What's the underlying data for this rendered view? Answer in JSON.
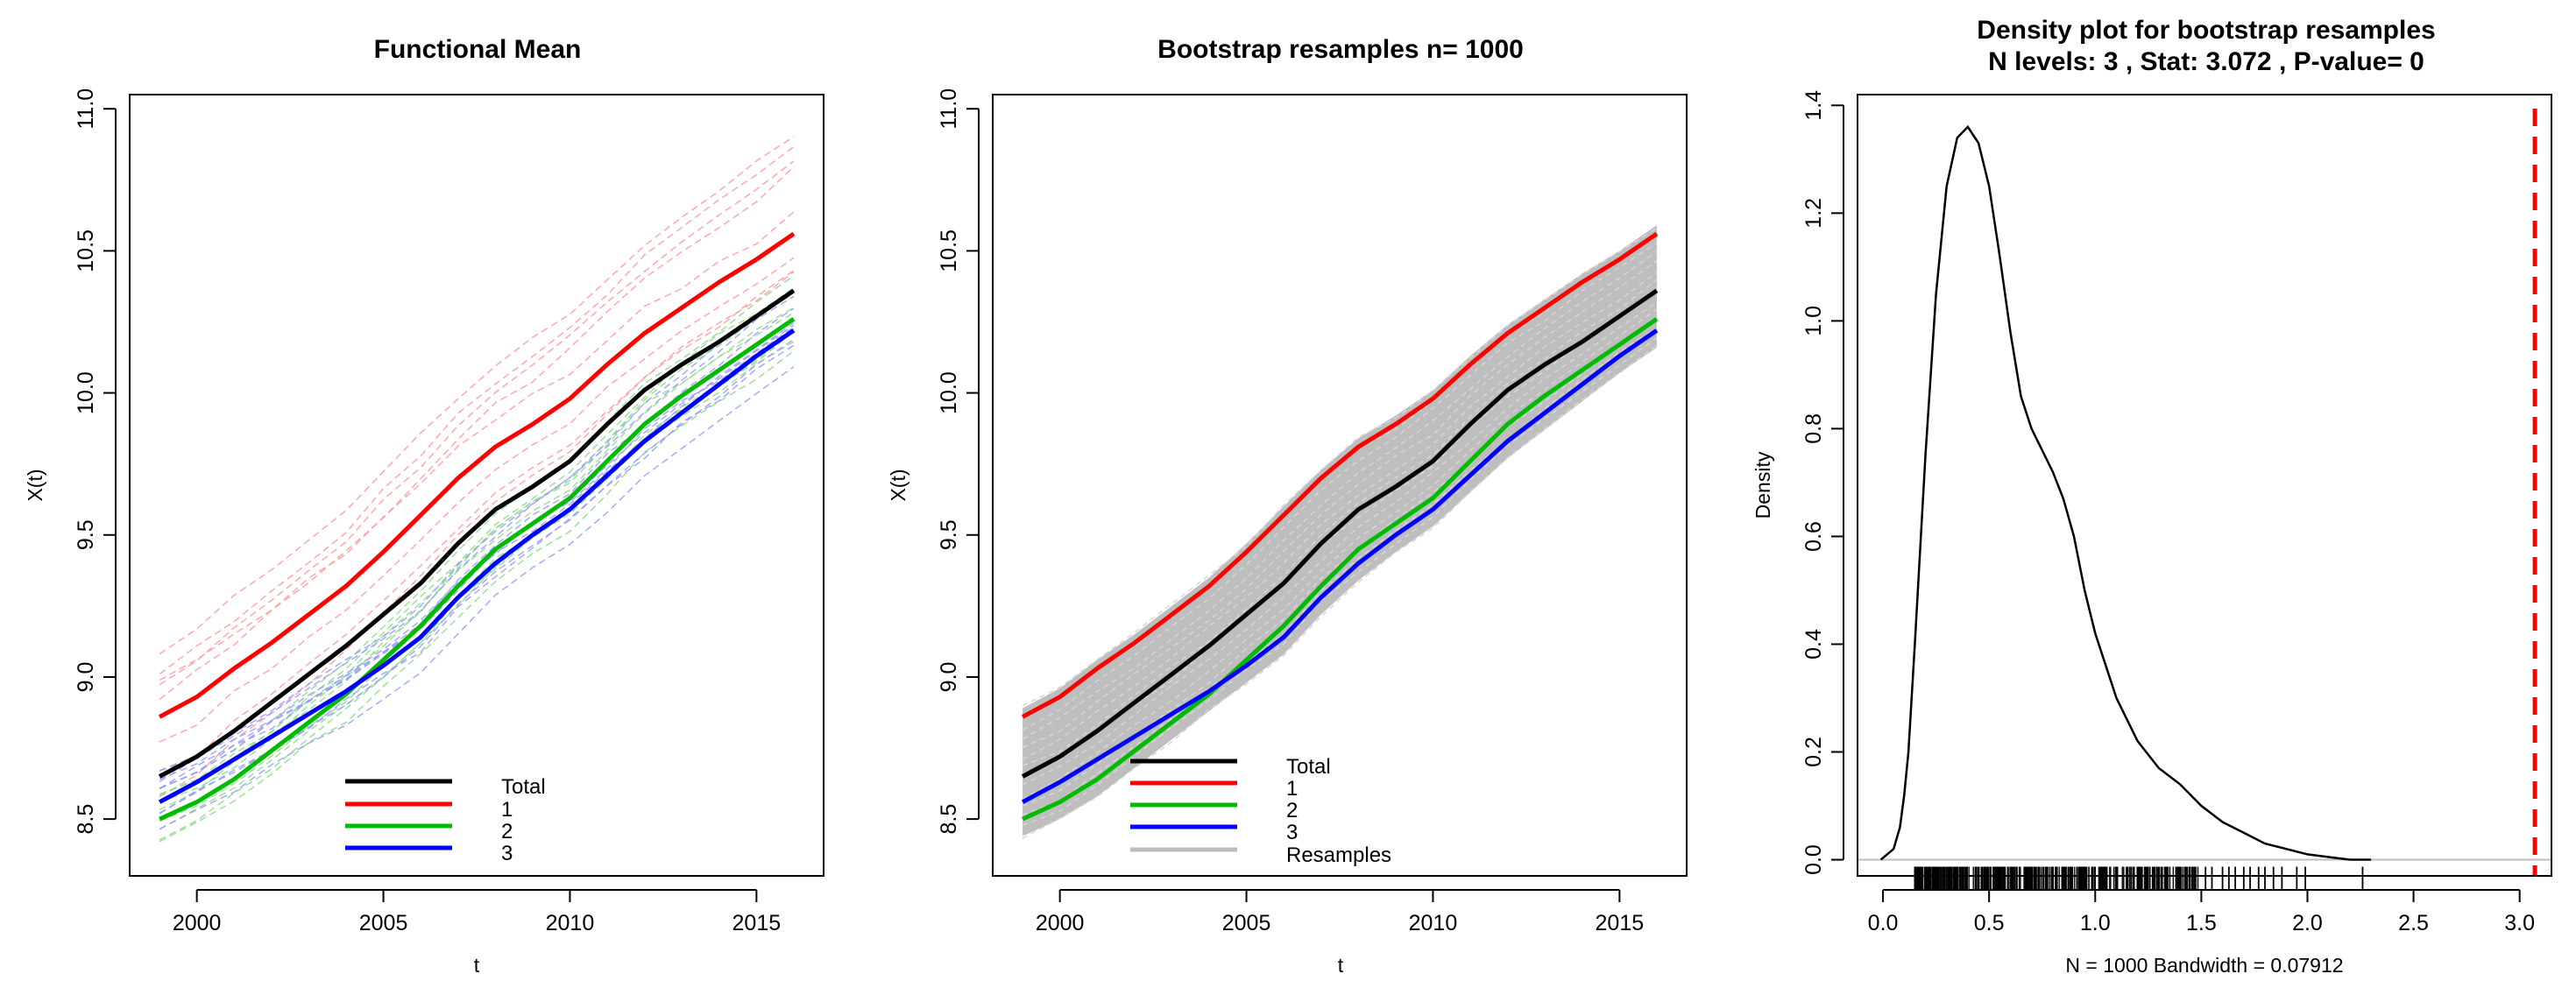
{
  "chart_data": [
    {
      "type": "line",
      "title": "Functional Mean",
      "xlabel": "t",
      "ylabel": "X(t)",
      "xlim": [
        1998.2,
        2016.8
      ],
      "ylim": [
        8.3,
        11.05
      ],
      "xticks": [
        "2000",
        "2005",
        "2010",
        "2015"
      ],
      "yticks": [
        "8.5",
        "9.0",
        "9.5",
        "10.0",
        "10.5",
        "11.0"
      ],
      "x": [
        1999,
        2000,
        2001,
        2002,
        2003,
        2004,
        2005,
        2006,
        2007,
        2008,
        2009,
        2010,
        2011,
        2012,
        2013,
        2014,
        2015,
        2016
      ],
      "series": [
        {
          "name": "Total",
          "color": "#000000",
          "values": [
            8.65,
            8.72,
            8.81,
            8.91,
            9.01,
            9.11,
            9.22,
            9.33,
            9.47,
            9.59,
            9.67,
            9.76,
            9.89,
            10.01,
            10.1,
            10.18,
            10.27,
            10.36
          ]
        },
        {
          "name": "1",
          "color": "#ff0000",
          "values": [
            8.86,
            8.93,
            9.03,
            9.12,
            9.22,
            9.32,
            9.44,
            9.57,
            9.7,
            9.81,
            9.89,
            9.98,
            10.1,
            10.21,
            10.3,
            10.39,
            10.47,
            10.56
          ]
        },
        {
          "name": "2",
          "color": "#00bb00",
          "values": [
            8.5,
            8.56,
            8.64,
            8.74,
            8.84,
            8.94,
            9.06,
            9.18,
            9.32,
            9.45,
            9.54,
            9.63,
            9.76,
            9.89,
            9.99,
            10.08,
            10.17,
            10.26
          ]
        },
        {
          "name": "3",
          "color": "#0000ff",
          "values": [
            8.56,
            8.63,
            8.71,
            8.79,
            8.87,
            8.95,
            9.04,
            9.14,
            9.28,
            9.4,
            9.5,
            9.59,
            9.71,
            9.83,
            9.93,
            10.03,
            10.13,
            10.22
          ]
        }
      ],
      "legend": {
        "position": "bottom-center",
        "entries": [
          "Total",
          "1",
          "2",
          "3"
        ]
      }
    },
    {
      "type": "line",
      "title": "Bootstrap resamples n= 1000",
      "xlabel": "t",
      "ylabel": "X(t)",
      "xlim": [
        1998.2,
        2016.8
      ],
      "ylim": [
        8.3,
        11.05
      ],
      "xticks": [
        "2000",
        "2005",
        "2010",
        "2015"
      ],
      "yticks": [
        "8.5",
        "9.0",
        "9.5",
        "10.0",
        "10.5",
        "11.0"
      ],
      "bootstrap_resamples": 1000,
      "resample_band": {
        "lower_offset_from_group3": -0.06,
        "upper_offset_from_group1": 0.03
      },
      "series_ref": [
        "Total",
        "1",
        "2",
        "3"
      ],
      "legend": {
        "position": "bottom-center",
        "entries": [
          "Total",
          "1",
          "2",
          "3",
          "Resamples"
        ],
        "resample_color": "#bebebe"
      }
    },
    {
      "type": "area",
      "title": "Density plot for bootstrap resamples",
      "subtitle": "N levels: 3 , Stat: 3.072 , P-value= 0",
      "xlabel": "N = 1000   Bandwidth = 0.07912",
      "ylabel": "Density",
      "xlim": [
        -0.12,
        3.15
      ],
      "ylim": [
        -0.03,
        1.42
      ],
      "xticks": [
        "0.0",
        "0.5",
        "1.0",
        "1.5",
        "2.0",
        "2.5",
        "3.0"
      ],
      "yticks": [
        "0.0",
        "0.2",
        "0.4",
        "0.6",
        "0.8",
        "1.0",
        "1.2",
        "1.4"
      ],
      "density_x": [
        -0.01,
        0.05,
        0.08,
        0.1,
        0.12,
        0.15,
        0.2,
        0.25,
        0.3,
        0.35,
        0.4,
        0.45,
        0.5,
        0.55,
        0.6,
        0.65,
        0.7,
        0.75,
        0.8,
        0.85,
        0.9,
        0.95,
        1.0,
        1.1,
        1.2,
        1.3,
        1.4,
        1.5,
        1.6,
        1.7,
        1.8,
        1.9,
        2.0,
        2.1,
        2.2,
        2.3
      ],
      "density_y": [
        0.0,
        0.02,
        0.06,
        0.12,
        0.2,
        0.4,
        0.75,
        1.05,
        1.25,
        1.34,
        1.36,
        1.33,
        1.25,
        1.12,
        0.98,
        0.86,
        0.8,
        0.76,
        0.72,
        0.67,
        0.6,
        0.5,
        0.42,
        0.3,
        0.22,
        0.17,
        0.14,
        0.1,
        0.07,
        0.05,
        0.03,
        0.02,
        0.01,
        0.005,
        0.0,
        0.0
      ],
      "rug": {
        "range": [
          0.12,
          2.26
        ],
        "dense_range": [
          0.15,
          1.5
        ],
        "sparse_values": [
          1.52,
          1.55,
          1.6,
          1.63,
          1.66,
          1.7,
          1.73,
          1.77,
          1.8,
          1.84,
          1.88,
          1.95,
          1.99,
          2.26
        ]
      },
      "stat_line": {
        "value": 3.072,
        "color": "#ff0000",
        "style": "dashed"
      }
    }
  ]
}
